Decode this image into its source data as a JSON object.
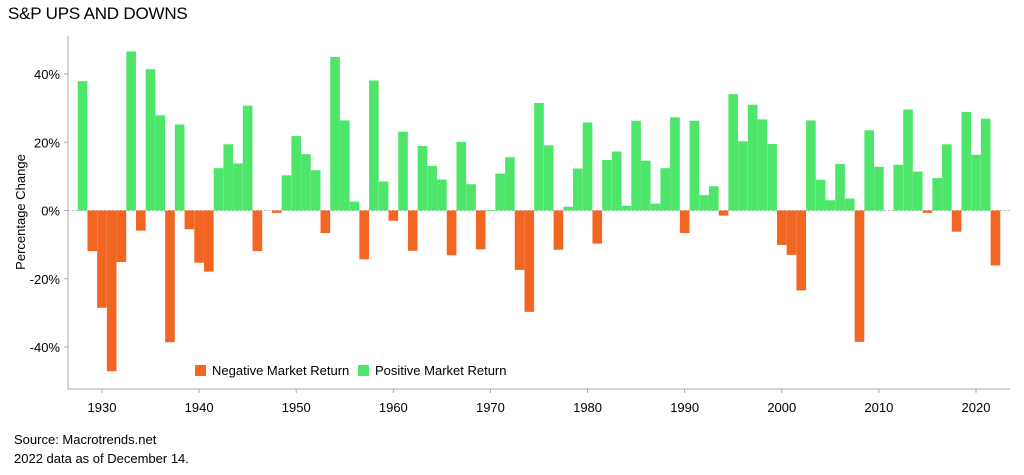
{
  "chart_data": {
    "type": "bar",
    "title": "S&P UPS AND DOWNS",
    "ylabel": "Percentage Change",
    "xlabel": "",
    "ylim": [
      -50,
      50
    ],
    "yticks": [
      -40,
      -20,
      0,
      20,
      40
    ],
    "ytick_labels": [
      "-40%",
      "-20%",
      "0%",
      "20%",
      "40%"
    ],
    "xticks": [
      1930,
      1940,
      1950,
      1960,
      1970,
      1980,
      1990,
      2000,
      2010,
      2020
    ],
    "xlim": [
      1926.5,
      2023.5
    ],
    "colors": {
      "negative": "#f26522",
      "positive": "#4ee66a",
      "zero_line": "#bbbbbb",
      "axis": "#aaaaaa"
    },
    "legend": {
      "position": "bottom-center",
      "entries": [
        "Negative Market Return",
        "Positive Market Return"
      ]
    },
    "years": [
      1928,
      1929,
      1930,
      1931,
      1932,
      1933,
      1934,
      1935,
      1936,
      1937,
      1938,
      1939,
      1940,
      1941,
      1942,
      1943,
      1944,
      1945,
      1946,
      1947,
      1948,
      1949,
      1950,
      1951,
      1952,
      1953,
      1954,
      1955,
      1956,
      1957,
      1958,
      1959,
      1960,
      1961,
      1962,
      1963,
      1964,
      1965,
      1966,
      1967,
      1968,
      1969,
      1970,
      1971,
      1972,
      1973,
      1974,
      1975,
      1976,
      1977,
      1978,
      1979,
      1980,
      1981,
      1982,
      1983,
      1984,
      1985,
      1986,
      1987,
      1988,
      1989,
      1990,
      1991,
      1992,
      1993,
      1994,
      1995,
      1996,
      1997,
      1998,
      1999,
      2000,
      2001,
      2002,
      2003,
      2004,
      2005,
      2006,
      2007,
      2008,
      2009,
      2010,
      2011,
      2012,
      2013,
      2014,
      2015,
      2016,
      2017,
      2018,
      2019,
      2020,
      2021,
      2022
    ],
    "values": [
      37.9,
      -11.9,
      -28.5,
      -47.1,
      -15.1,
      46.6,
      -5.9,
      41.4,
      27.9,
      -38.6,
      25.2,
      -5.5,
      -15.3,
      -17.9,
      12.4,
      19.4,
      13.8,
      30.7,
      -11.9,
      0.0,
      -0.7,
      10.3,
      21.8,
      16.5,
      11.8,
      -6.6,
      45.0,
      26.4,
      2.6,
      -14.3,
      38.1,
      8.5,
      -3.0,
      23.1,
      -11.8,
      18.9,
      13.0,
      9.1,
      -13.1,
      20.1,
      7.7,
      -11.4,
      0.1,
      10.8,
      15.6,
      -17.4,
      -29.7,
      31.5,
      19.1,
      -11.5,
      1.1,
      12.3,
      25.8,
      -9.7,
      14.8,
      17.3,
      1.4,
      26.3,
      14.6,
      2.0,
      12.4,
      27.3,
      -6.6,
      26.3,
      4.5,
      7.1,
      -1.5,
      34.1,
      20.3,
      31.0,
      26.7,
      19.5,
      -10.1,
      -13.0,
      -23.4,
      26.4,
      9.0,
      3.0,
      13.6,
      3.5,
      -38.5,
      23.5,
      12.8,
      0.0,
      13.4,
      29.6,
      11.4,
      -0.7,
      9.5,
      19.4,
      -6.2,
      28.9,
      16.3,
      26.9,
      -16.1
    ]
  },
  "footer": {
    "source": "Source: Macrotrends.net",
    "note": "2022 data as of December 14."
  }
}
